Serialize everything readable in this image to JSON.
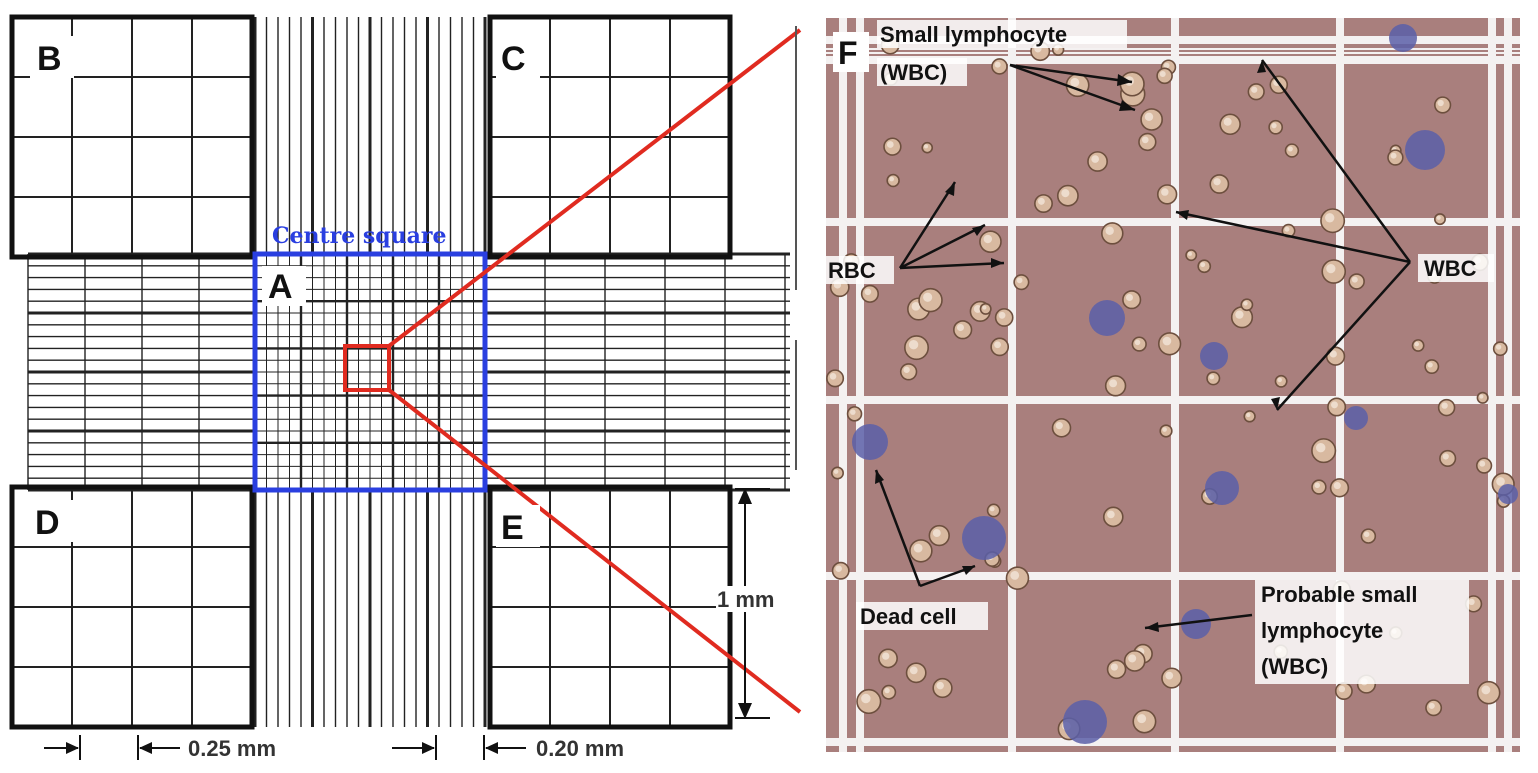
{
  "hemocytometer": {
    "label_b": "B",
    "label_c": "C",
    "label_a": "A",
    "label_d": "D",
    "label_e": "E",
    "centre_square": "Centre square",
    "dim_1mm": "1 mm",
    "dim_025": "0.25 mm",
    "dim_020": "0.20 mm"
  },
  "micrograph": {
    "panel_label": "F",
    "annotations": {
      "small_lymphocyte_1": "Small lymphocyte",
      "small_lymphocyte_2": "(WBC)",
      "rbc": "RBC",
      "wbc": "WBC",
      "dead_cell": "Dead cell",
      "probable_1": "Probable small",
      "probable_2": "lymphocyte",
      "probable_3": "(WBC)"
    }
  },
  "colors": {
    "grid_line": "#222222",
    "centre_square": "#2a3fe0",
    "zoom_lines": "#e02b20",
    "micrograph_bg": "#a97f7d",
    "micrograph_grid": "#f4f1f1",
    "rbc_fill": "#d8b9a0",
    "wbc_stain": "#5b5fa8"
  }
}
